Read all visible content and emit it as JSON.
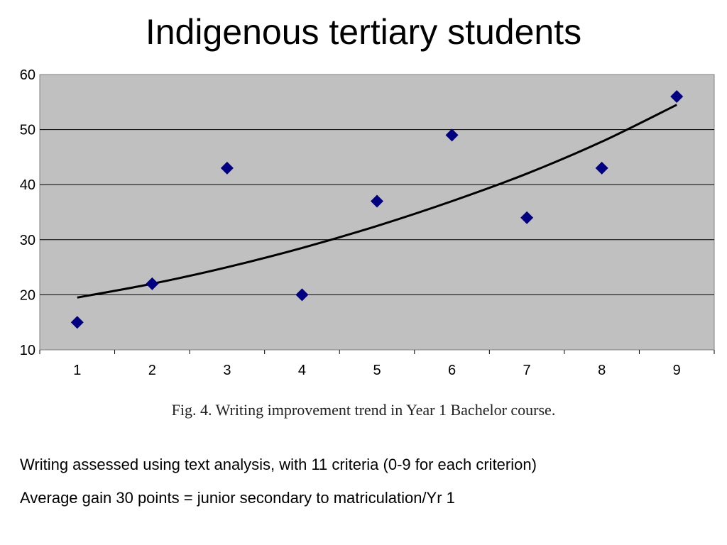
{
  "slide": {
    "title": "Indigenous tertiary students",
    "caption": "Fig. 4.  Writing improvement trend in Year 1 Bachelor course.",
    "notes": [
      "Writing assessed using text analysis, with 11 criteria (0-9 for each criterion)",
      "Average gain 30 points = junior secondary to matriculation/Yr 1"
    ]
  },
  "chart_data": {
    "type": "scatter",
    "title": "",
    "xlabel": "",
    "ylabel": "",
    "x": [
      1,
      2,
      3,
      4,
      5,
      6,
      7,
      8,
      9
    ],
    "y": [
      15,
      22,
      43,
      20,
      37,
      49,
      34,
      43,
      56
    ],
    "xticks": [
      "1",
      "2",
      "3",
      "4",
      "5",
      "6",
      "7",
      "8",
      "9"
    ],
    "yticks": [
      "10",
      "20",
      "30",
      "40",
      "50",
      "60"
    ],
    "ylim": [
      10,
      60
    ],
    "xlim": [
      0.5,
      9.5
    ],
    "grid": "horizontal",
    "plot_background": "#c0c0c0",
    "marker_color": "#000080",
    "trendline": {
      "type": "polynomial",
      "color": "#000000",
      "points": [
        [
          1,
          19.5
        ],
        [
          2,
          22
        ],
        [
          3,
          25
        ],
        [
          4,
          28.5
        ],
        [
          5,
          32.5
        ],
        [
          6,
          37
        ],
        [
          7,
          42
        ],
        [
          8,
          47.8
        ],
        [
          9,
          54.5
        ]
      ]
    },
    "legend": "none"
  }
}
